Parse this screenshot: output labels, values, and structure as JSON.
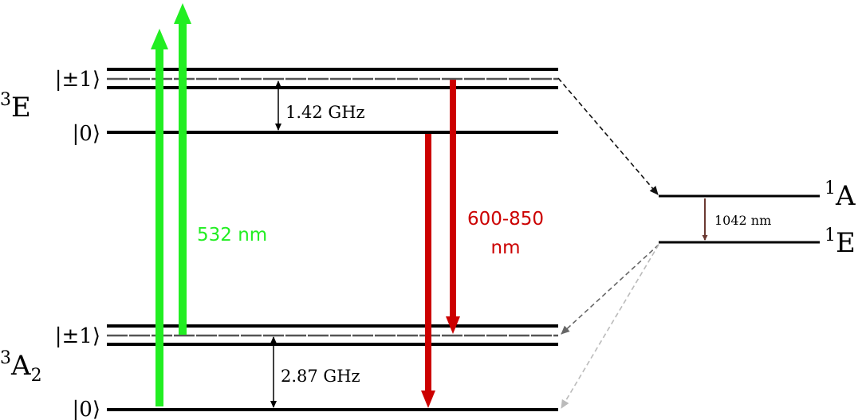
{
  "colors": {
    "level": "#000000",
    "sublevel": "#555555",
    "excitation": "#22ee22",
    "emission": "#cc0000",
    "singlet_transition": "#6b3a32",
    "isc_dark": "#111111",
    "isc_mid": "#666666",
    "isc_light": "#bbbbbb"
  },
  "labels": {
    "excited_triplet": {
      "sup": "3",
      "main": "E"
    },
    "ground_triplet": {
      "sup": "3",
      "main": "A",
      "sub": "2"
    },
    "singlet_upper": {
      "sup": "1",
      "main": "A"
    },
    "singlet_lower": {
      "sup": "1",
      "main": "E"
    },
    "excited_pm1": "|±1⟩",
    "excited_0": "|0⟩",
    "ground_pm1": "|±1⟩",
    "ground_0": "|0⟩",
    "excited_splitting": "1.42 GHz",
    "ground_splitting": "2.87 GHz",
    "excitation_wavelength": "532 nm",
    "emission_wavelength_1": "600-850",
    "emission_wavelength_2": "nm",
    "singlet_wavelength": "1042 nm"
  }
}
